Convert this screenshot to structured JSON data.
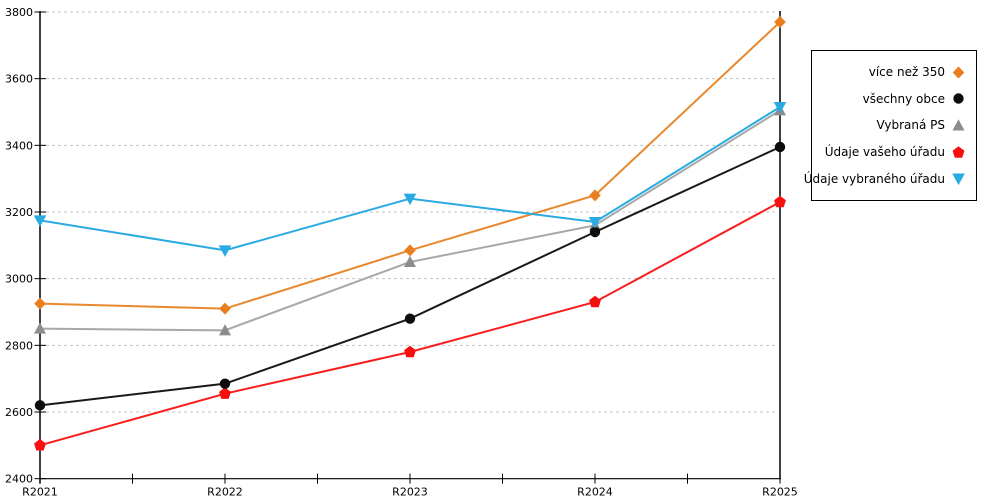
{
  "chart_data": {
    "type": "line",
    "title": "",
    "xlabel": "",
    "ylabel": "",
    "x_categories": [
      "R2021",
      "R2022",
      "R2023",
      "R2024",
      "R2025"
    ],
    "y_ticks": [
      2400,
      2600,
      2800,
      3000,
      3200,
      3400,
      3600,
      3800
    ],
    "ylim": [
      2400,
      3800
    ],
    "grid": "horizontal-dashed",
    "grid_color": "#c4c4c4",
    "axis_color": "#000000",
    "legend_position": "right-outside",
    "series": [
      {
        "name": "více než 350",
        "marker": "diamond",
        "color": "#e87e1e",
        "line_color": "#e9882e",
        "values": [
          2925,
          2910,
          3085,
          3250,
          3770
        ]
      },
      {
        "name": "všechny obce",
        "marker": "circle",
        "color": "#0d0d0d",
        "line_color": "#191919",
        "values": [
          2620,
          2685,
          2880,
          3140,
          3395
        ]
      },
      {
        "name": "Vybraná PS",
        "marker": "triangle-up",
        "color": "#8d8d8d",
        "line_color": "#a8a8a8",
        "values": [
          2850,
          2845,
          3050,
          3160,
          3505
        ]
      },
      {
        "name": "Údaje vašeho úřadu",
        "marker": "pentagon",
        "color": "#f60f0f",
        "line_color": "#f81c1c",
        "values": [
          2500,
          2655,
          2780,
          2930,
          3230
        ]
      },
      {
        "name": "Údaje vybraného úřadu",
        "marker": "triangle-down",
        "color": "#29abe2",
        "line_color": "#29abe2",
        "values": [
          3175,
          3085,
          3240,
          3170,
          3515
        ]
      }
    ]
  }
}
